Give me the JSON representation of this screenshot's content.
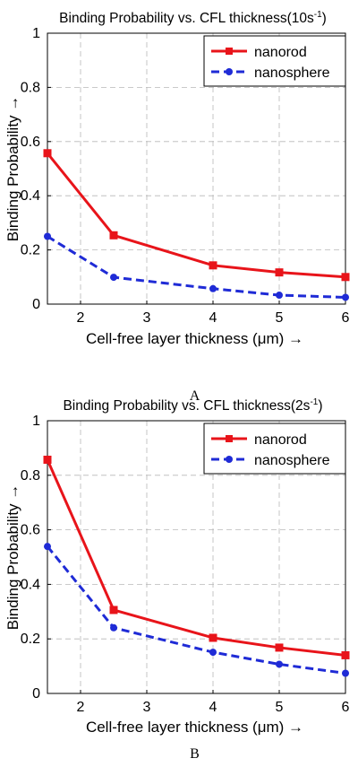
{
  "chart_data": [
    {
      "type": "line",
      "panel_label": "A",
      "title": "Binding Probability vs. CFL thickness(10s",
      "title_sup": "-1",
      "title_close": ")",
      "xlabel": "Cell-free layer thickness (μm) →",
      "ylabel": "Binding Probability →",
      "xlim": [
        1.5,
        6
      ],
      "ylim": [
        0,
        1
      ],
      "xticks": [
        "2",
        "3",
        "4",
        "5",
        "6"
      ],
      "yticks": [
        "0",
        "0.2",
        "0.4",
        "0.6",
        "0.8",
        "1"
      ],
      "grid": true,
      "legend_position": "top-right",
      "x": [
        1.5,
        2.5,
        4,
        5,
        6
      ],
      "series": [
        {
          "name": "nanorod",
          "values": [
            0.557,
            0.254,
            0.143,
            0.117,
            0.1
          ],
          "color": "#e8141a",
          "marker": "square",
          "line": "solid"
        },
        {
          "name": "nanosphere",
          "values": [
            0.25,
            0.099,
            0.057,
            0.033,
            0.025
          ],
          "color": "#1f2bd6",
          "marker": "circle",
          "line": "dashed"
        }
      ]
    },
    {
      "type": "line",
      "panel_label": "B",
      "title": "Binding Probability vs. CFL thickness(2s",
      "title_sup": "-1",
      "title_close": ")",
      "xlabel": "Cell-free layer thickness (μm) →",
      "ylabel": "Binding Probability →",
      "xlim": [
        1.5,
        6
      ],
      "ylim": [
        0,
        1
      ],
      "xticks": [
        "2",
        "3",
        "4",
        "5",
        "6"
      ],
      "yticks": [
        "0",
        "0.2",
        "0.4",
        "0.6",
        "0.8",
        "1"
      ],
      "grid": true,
      "legend_position": "top-right",
      "x": [
        1.5,
        2.5,
        4,
        5,
        6
      ],
      "series": [
        {
          "name": "nanorod",
          "values": [
            0.857,
            0.306,
            0.204,
            0.168,
            0.14
          ],
          "color": "#e8141a",
          "marker": "square",
          "line": "solid"
        },
        {
          "name": "nanosphere",
          "values": [
            0.539,
            0.241,
            0.151,
            0.107,
            0.074
          ],
          "color": "#1f2bd6",
          "marker": "circle",
          "line": "dashed"
        }
      ]
    }
  ]
}
